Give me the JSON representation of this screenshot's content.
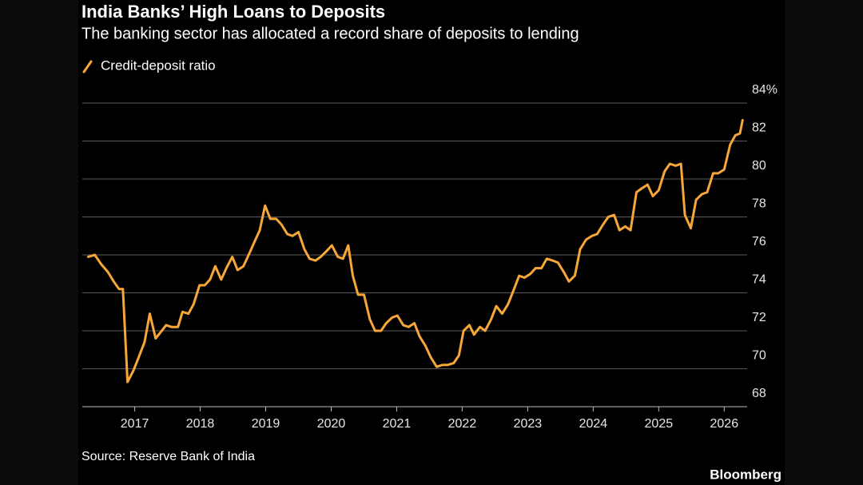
{
  "chart_data": {
    "type": "line",
    "title": "India Banks’ High Loans to Deposits",
    "subtitle": "The banking sector has allocated a record share of deposits to lending",
    "source": "Source: Reserve Bank of India",
    "brand": "Bloomberg",
    "legend": "top-left",
    "grid": true,
    "xlim": [
      2016.2,
      2026.35
    ],
    "xticks": [
      2017,
      2018,
      2019,
      2020,
      2021,
      2022,
      2023,
      2024,
      2025,
      2026
    ],
    "ylim": [
      68,
      84
    ],
    "yticks": [
      68,
      70,
      72,
      74,
      76,
      78,
      80,
      82,
      {
        "value": 84,
        "label": "84%"
      }
    ],
    "x": [
      2016.29,
      2016.39,
      2016.49,
      2016.59,
      2016.68,
      2016.76,
      2016.82,
      2016.89,
      2016.98,
      2017.06,
      2017.15,
      2017.23,
      2017.32,
      2017.39,
      2017.48,
      2017.56,
      2017.66,
      2017.73,
      2017.82,
      2017.9,
      2017.99,
      2018.07,
      2018.15,
      2018.23,
      2018.32,
      2018.4,
      2018.49,
      2018.57,
      2018.66,
      2018.74,
      2018.83,
      2018.91,
      2018.99,
      2019.07,
      2019.16,
      2019.24,
      2019.33,
      2019.41,
      2019.5,
      2019.59,
      2019.67,
      2019.76,
      2019.84,
      2019.93,
      2020.01,
      2020.1,
      2020.18,
      2020.26,
      2020.33,
      2020.41,
      2020.5,
      2020.59,
      2020.67,
      2020.76,
      2020.84,
      2020.93,
      2021.01,
      2021.1,
      2021.18,
      2021.27,
      2021.35,
      2021.44,
      2021.52,
      2021.61,
      2021.7,
      2021.78,
      2021.87,
      2021.95,
      2022.02,
      2022.11,
      2022.18,
      2022.27,
      2022.35,
      2022.44,
      2022.52,
      2022.61,
      2022.7,
      2022.78,
      2022.87,
      2022.95,
      2023.04,
      2023.12,
      2023.21,
      2023.29,
      2023.38,
      2023.46,
      2023.55,
      2023.63,
      2023.72,
      2023.8,
      2023.89,
      2023.98,
      2024.06,
      2024.15,
      2024.23,
      2024.32,
      2024.4,
      2024.49,
      2024.57,
      2024.66,
      2024.74,
      2024.83,
      2024.91,
      2025.0,
      2025.09,
      2025.17,
      2025.26,
      2025.34,
      2025.4,
      2025.49,
      2025.57,
      2025.66,
      2025.74,
      2025.83,
      2025.91,
      2026.0,
      2026.09,
      2026.17,
      2026.24,
      2026.28
    ],
    "series": [
      {
        "name": "Credit-deposit ratio",
        "color": "#f7a738",
        "values": [
          75.9,
          76.0,
          75.5,
          75.1,
          74.6,
          74.2,
          74.2,
          69.3,
          69.9,
          70.6,
          71.4,
          72.9,
          71.6,
          71.9,
          72.3,
          72.2,
          72.2,
          73.0,
          72.9,
          73.4,
          74.4,
          74.4,
          74.7,
          75.4,
          74.7,
          75.3,
          75.9,
          75.2,
          75.4,
          76.0,
          76.7,
          77.3,
          78.6,
          77.9,
          77.9,
          77.6,
          77.1,
          77.0,
          77.2,
          76.3,
          75.8,
          75.7,
          75.9,
          76.2,
          76.5,
          75.9,
          75.8,
          76.5,
          74.9,
          73.9,
          73.9,
          72.6,
          72.0,
          72.0,
          72.4,
          72.7,
          72.8,
          72.3,
          72.2,
          72.4,
          71.7,
          71.2,
          70.6,
          70.1,
          70.2,
          70.2,
          70.3,
          70.7,
          72.0,
          72.3,
          71.8,
          72.2,
          72.0,
          72.6,
          73.3,
          72.9,
          73.4,
          74.1,
          74.9,
          74.8,
          75.0,
          75.3,
          75.3,
          75.8,
          75.7,
          75.6,
          75.1,
          74.6,
          74.9,
          76.3,
          76.8,
          77.0,
          77.1,
          77.6,
          78.0,
          78.1,
          77.3,
          77.5,
          77.3,
          79.3,
          79.5,
          79.7,
          79.1,
          79.4,
          80.4,
          80.8,
          80.7,
          80.8,
          78.1,
          77.4,
          78.9,
          79.2,
          79.3,
          80.3,
          80.3,
          80.5,
          81.8,
          82.3,
          82.4,
          83.1
        ]
      }
    ]
  }
}
